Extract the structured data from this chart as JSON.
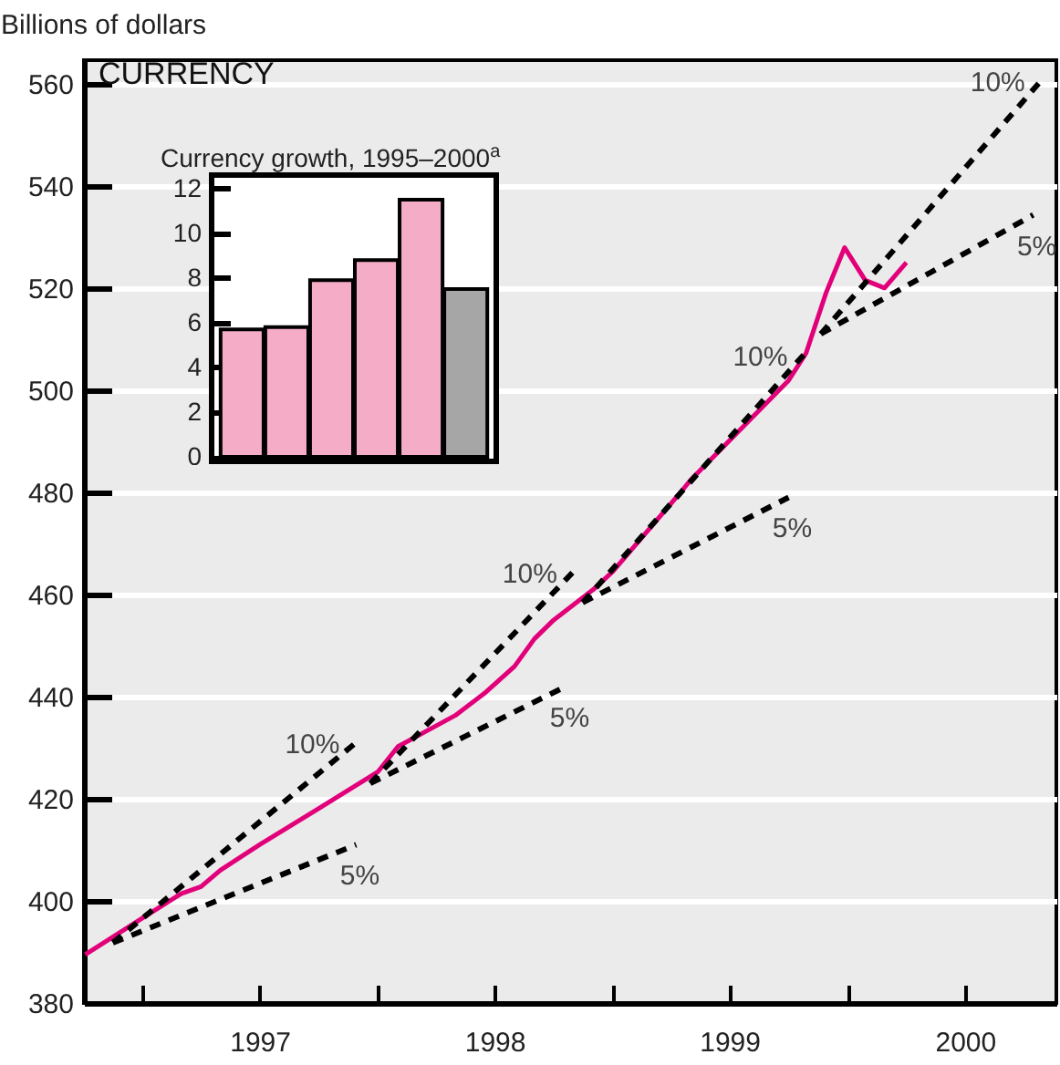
{
  "chart_data": [
    {
      "type": "line",
      "title": "CURRENCY",
      "ylabel": "Billions of dollars",
      "xlim": [
        "1996-10-01",
        "2000-11-20"
      ],
      "ylim": [
        380,
        564.6
      ],
      "xticks": [
        {
          "value": "1997-01-01",
          "label": null
        },
        {
          "value": "1997-07-01",
          "label": "1997"
        },
        {
          "value": "1998-01-01",
          "label": null
        },
        {
          "value": "1998-07-01",
          "label": "1998"
        },
        {
          "value": "1999-01-01",
          "label": null
        },
        {
          "value": "1999-07-01",
          "label": "1999"
        },
        {
          "value": "2000-01-01",
          "label": null
        },
        {
          "value": "2000-07-01",
          "label": "2000"
        }
      ],
      "yticks": [
        380,
        400,
        420,
        440,
        460,
        480,
        500,
        520,
        540,
        560
      ],
      "grid": "y",
      "series": [
        {
          "color": "#e2007a",
          "x": [
            "1996-10-03",
            "1997-01-01",
            "1997-03-01",
            "1997-04-01",
            "1997-05-01",
            "1997-07-01",
            "1997-10-01",
            "1998-01-01",
            "1998-02-01",
            "1998-03-15",
            "1998-05-01",
            "1998-06-15",
            "1998-08-01",
            "1998-09-01",
            "1998-10-01",
            "1998-12-01",
            "1999-01-01",
            "1999-04-15",
            "1999-05-01",
            "1999-10-01",
            "1999-10-28",
            "1999-11-28",
            "1999-12-27",
            "2000-01-28",
            "2000-02-27",
            "2000-04-01"
          ],
          "values": [
            389.5,
            396.7,
            401.4,
            402.8,
            406,
            411,
            418.1,
            425.3,
            430.2,
            433.1,
            436.3,
            440.6,
            445.9,
            451.3,
            455,
            460.9,
            464.5,
            479.8,
            482.3,
            501.9,
            507.2,
            519,
            527.9,
            521.5,
            520,
            525
          ]
        },
        {
          "name": "10%",
          "color": "#000000",
          "line_style": "dashed",
          "x": [
            "1996-11-15",
            "1997-11-28"
          ],
          "values": [
            391.8,
            431
          ]
        },
        {
          "name": "5%",
          "color": "#000000",
          "line_style": "dashed",
          "x": [
            "1996-11-15",
            "1997-11-28"
          ],
          "values": [
            391.8,
            411
          ]
        },
        {
          "name": "10%",
          "color": "#000000",
          "line_style": "dashed",
          "x": [
            "1997-12-20",
            "1998-11-01"
          ],
          "values": [
            423,
            464.5
          ]
        },
        {
          "name": "5%",
          "color": "#000000",
          "line_style": "dashed",
          "x": [
            "1997-12-20",
            "1998-10-20"
          ],
          "values": [
            423,
            442
          ]
        },
        {
          "name": "10%",
          "color": "#000000",
          "line_style": "dashed",
          "x": [
            "1998-11-15",
            "1999-10-25"
          ],
          "values": [
            458.4,
            507
          ]
        },
        {
          "name": "5%",
          "color": "#000000",
          "line_style": "dashed",
          "x": [
            "1998-11-15",
            "1999-10-01"
          ],
          "values": [
            458.4,
            479
          ]
        },
        {
          "name": "10%",
          "color": "#000000",
          "line_style": "dashed",
          "x": [
            "1999-11-20",
            "2000-10-28"
          ],
          "values": [
            511,
            560.7
          ]
        },
        {
          "name": "5%",
          "color": "#000000",
          "line_style": "dashed",
          "x": [
            "1999-11-20",
            "2000-10-15"
          ],
          "values": [
            511,
            534.3
          ]
        }
      ]
    },
    {
      "type": "bar",
      "title": "Currency growth, 1995–2000$^{a}$",
      "categories": [
        null,
        null,
        null,
        null,
        null,
        null
      ],
      "values": [
        5.7,
        5.8,
        7.9,
        8.8,
        11.5,
        7.5
      ],
      "colors": [
        "#f5acc7",
        "#f5acc7",
        "#f5acc7",
        "#f5acc7",
        "#f5acc7",
        "#a6a6a6"
      ],
      "ylim": [
        -0.2,
        12.6
      ],
      "yticks": [
        0,
        2,
        4,
        6,
        8,
        10,
        12
      ]
    }
  ]
}
